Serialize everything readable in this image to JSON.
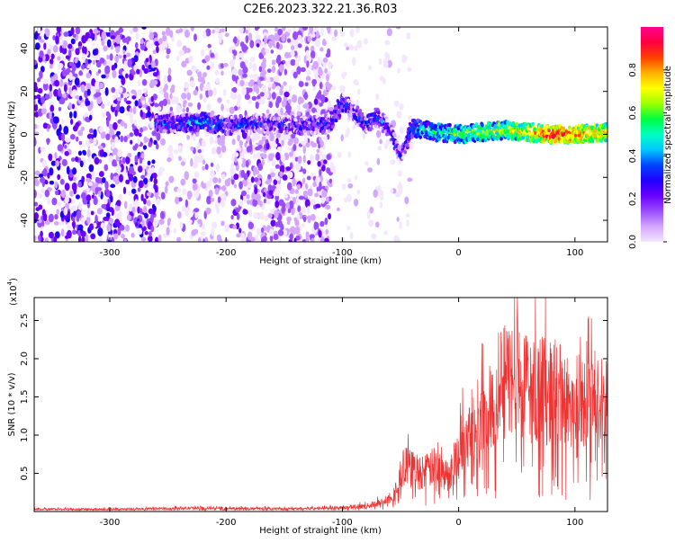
{
  "title": "C2E6.2023.322.21.36.R03",
  "chart_data": [
    {
      "type": "heatmap",
      "xlabel": "Height of straight line (km)",
      "ylabel": "Frequency (Hz)",
      "xlim": [
        -365,
        128
      ],
      "ylim": [
        -50,
        50
      ],
      "xticks": [
        -300,
        -200,
        -100,
        0,
        100
      ],
      "yticks": [
        -40,
        -20,
        0,
        20,
        40
      ],
      "colorbar": {
        "label": "Normalized spectral amplitude",
        "range": [
          0.0,
          1.0
        ],
        "ticks": [
          0.0,
          0.2,
          0.4,
          0.6,
          0.8
        ],
        "colors": [
          "#f3e6ff",
          "#d4a6ff",
          "#9a4dff",
          "#6a00ff",
          "#1f00ff",
          "#0044ff",
          "#00c8ff",
          "#00ffc0",
          "#00ff40",
          "#9cff00",
          "#ffff00",
          "#ffb000",
          "#ff4000",
          "#ff0040",
          "#ff0090"
        ]
      },
      "signal_track": {
        "x": [
          -260,
          -240,
          -220,
          -200,
          -180,
          -160,
          -130,
          -110,
          -100,
          -90,
          -80,
          -70,
          -60,
          -50,
          -40,
          -30,
          -20,
          0,
          20,
          40,
          60,
          80,
          100,
          128
        ],
        "y": [
          5,
          5,
          6,
          4,
          5,
          5,
          4,
          5,
          15,
          10,
          5,
          8,
          3,
          -10,
          3,
          2,
          1,
          0,
          1,
          2,
          1,
          0,
          0,
          1
        ],
        "amplitude": [
          0.3,
          0.35,
          0.4,
          0.3,
          0.3,
          0.25,
          0.3,
          0.3,
          0.35,
          0.25,
          0.3,
          0.35,
          0.3,
          0.25,
          0.35,
          0.45,
          0.5,
          0.55,
          0.6,
          0.65,
          0.7,
          0.85,
          0.8,
          0.7
        ]
      }
    },
    {
      "type": "line",
      "xlabel": "Height of straight line (km)",
      "ylabel": "SNR (10 * v/v)",
      "yscale_label": "(x10",
      "yscale_exp": "4",
      "xlim": [
        -365,
        128
      ],
      "ylim": [
        0,
        28000
      ],
      "xticks": [
        -300,
        -200,
        -100,
        0,
        100
      ],
      "yticks": [
        5000,
        10000,
        15000,
        20000,
        25000
      ],
      "ytick_labels": [
        "0.5",
        "1.0",
        "1.5",
        "2.0",
        "2.5"
      ],
      "color": "#ee3333",
      "series": [
        {
          "x": [
            -365,
            -300,
            -260,
            -235,
            -200,
            -150,
            -120,
            -100,
            -80,
            -65,
            -55,
            -45,
            -40,
            -30,
            -20,
            -10,
            0,
            10,
            20,
            30,
            40,
            50,
            60,
            70,
            80,
            90,
            100,
            110,
            120,
            128
          ],
          "y": [
            300,
            300,
            350,
            450,
            400,
            350,
            450,
            500,
            700,
            1200,
            2500,
            6000,
            5500,
            5000,
            6000,
            4500,
            7500,
            11000,
            12000,
            15000,
            17000,
            18000,
            16000,
            16000,
            15500,
            15000,
            14500,
            14000,
            14000,
            14500
          ]
        }
      ]
    }
  ]
}
